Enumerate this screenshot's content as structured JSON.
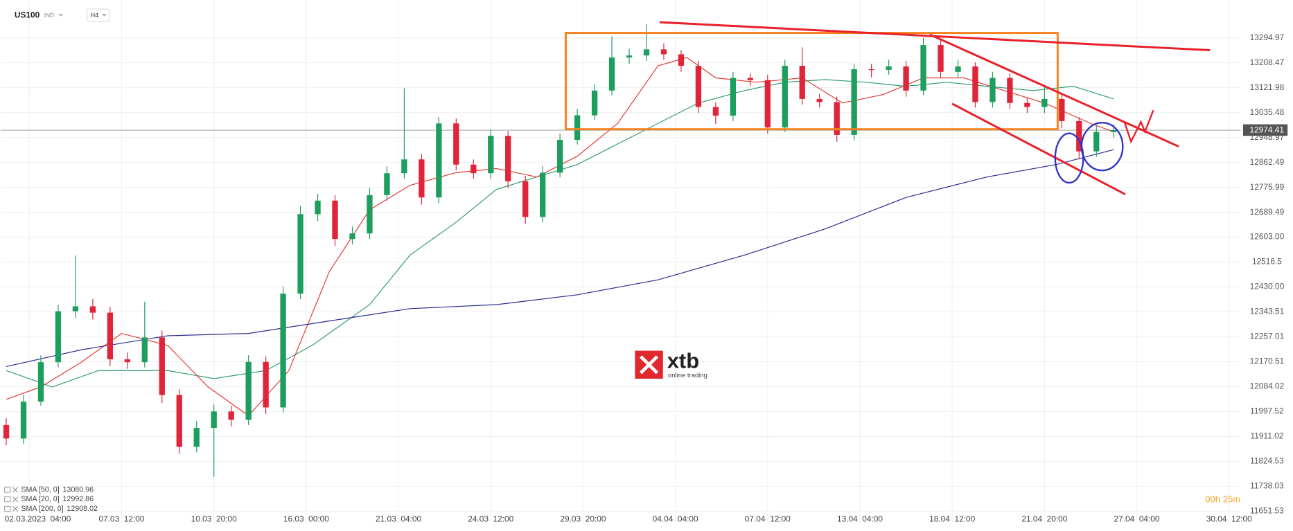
{
  "chart_data": {
    "type": "candlestick",
    "title": "US100",
    "instrument_type": "IND",
    "timeframe": "H4",
    "up_color": "#1e9e5e",
    "down_color": "#e0253a",
    "grid": true,
    "x": [
      1,
      4,
      7,
      10,
      13,
      16,
      19,
      22,
      25,
      28,
      31,
      34,
      37,
      40,
      43,
      46,
      49,
      52,
      55,
      58,
      61,
      64,
      67,
      70,
      73,
      76,
      79,
      82,
      85,
      88,
      91,
      94,
      97,
      100,
      103,
      106,
      109,
      112,
      115,
      118,
      121,
      124,
      127,
      130,
      133,
      136,
      139,
      142,
      145,
      148,
      151,
      154,
      157,
      160,
      163,
      166,
      169,
      172,
      175,
      178,
      181,
      184,
      187,
      190,
      193
    ],
    "ohlc": [
      [
        11951,
        11975,
        11880,
        11904
      ],
      [
        11904,
        12056,
        11885,
        12032
      ],
      [
        12032,
        12193,
        12018,
        12169
      ],
      [
        12169,
        12369,
        12151,
        12346
      ],
      [
        12346,
        12540,
        12322,
        12363
      ],
      [
        12363,
        12388,
        12317,
        12341
      ],
      [
        12341,
        12360,
        12155,
        12179
      ],
      [
        12179,
        12203,
        12146,
        12169
      ],
      [
        12169,
        12379,
        12151,
        12255
      ],
      [
        12255,
        12279,
        12027,
        12055
      ],
      [
        12055,
        12075,
        11851,
        11875
      ],
      [
        11875,
        11965,
        11856,
        11941
      ],
      [
        11941,
        12022,
        11771,
        11998
      ],
      [
        11998,
        12018,
        11946,
        11969
      ],
      [
        11969,
        12193,
        11951,
        12170
      ],
      [
        12170,
        12189,
        11989,
        12012
      ],
      [
        12012,
        12431,
        11994,
        12407
      ],
      [
        12407,
        12711,
        12388,
        12683
      ],
      [
        12683,
        12754,
        12659,
        12730
      ],
      [
        12730,
        12749,
        12573,
        12597
      ],
      [
        12597,
        12640,
        12578,
        12616
      ],
      [
        12616,
        12773,
        12597,
        12749
      ],
      [
        12749,
        12849,
        12730,
        12825
      ],
      [
        12825,
        13120,
        12806,
        12873
      ],
      [
        12873,
        12892,
        12716,
        12741
      ],
      [
        12741,
        13020,
        12721,
        12998
      ],
      [
        12998,
        13015,
        12835,
        12855
      ],
      [
        12855,
        12873,
        12806,
        12825
      ],
      [
        12825,
        12977,
        12806,
        12955
      ],
      [
        12955,
        12972,
        12773,
        12797
      ],
      [
        12797,
        12816,
        12649,
        12673
      ],
      [
        12673,
        12849,
        12654,
        12827
      ],
      [
        12827,
        12963,
        12811,
        12941
      ],
      [
        12941,
        13048,
        12925,
        13026
      ],
      [
        13026,
        13134,
        13010,
        13112
      ],
      [
        13112,
        13300,
        13096,
        13227
      ],
      [
        13227,
        13257,
        13205,
        13234
      ],
      [
        13234,
        13343,
        13215,
        13255
      ],
      [
        13255,
        13276,
        13219,
        13238
      ],
      [
        13238,
        13253,
        13177,
        13198
      ],
      [
        13198,
        13215,
        13034,
        13055
      ],
      [
        13055,
        13072,
        12996,
        13025
      ],
      [
        13025,
        13177,
        13006,
        13156
      ],
      [
        13156,
        13172,
        13129,
        13148
      ],
      [
        13148,
        13167,
        12963,
        12984
      ],
      [
        12984,
        13219,
        12968,
        13198
      ],
      [
        13198,
        13262,
        13063,
        13083
      ],
      [
        13083,
        13101,
        13053,
        13072
      ],
      [
        13072,
        13091,
        12934,
        12958
      ],
      [
        12958,
        13205,
        12939,
        13186
      ],
      [
        13186,
        13205,
        13158,
        13184
      ],
      [
        13184,
        13219,
        13167,
        13196
      ],
      [
        13196,
        13215,
        13091,
        13112
      ],
      [
        13112,
        13295,
        13096,
        13270
      ],
      [
        13270,
        13286,
        13158,
        13177
      ],
      [
        13177,
        13219,
        13158,
        13196
      ],
      [
        13196,
        13210,
        13053,
        13072
      ],
      [
        13072,
        13177,
        13053,
        13156
      ],
      [
        13156,
        13172,
        13048,
        13069
      ],
      [
        13069,
        13086,
        13034,
        13055
      ],
      [
        13055,
        13129,
        13034,
        13083
      ],
      [
        13083,
        13101,
        12982,
        13006
      ],
      [
        13006,
        13020,
        12873,
        12901
      ],
      [
        12901,
        12991,
        12882,
        12968
      ],
      [
        12968,
        12996,
        12949,
        12975
      ]
    ],
    "series": [
      {
        "name": "SMA [50, 0]",
        "legend_value": 13080.96,
        "color": "#2e9e6a",
        "x": [
          1,
          9,
          17,
          29,
          37,
          46,
          54,
          64,
          71,
          79,
          86,
          93,
          100,
          107,
          114,
          121,
          129,
          136,
          143,
          150,
          157,
          164,
          171,
          179,
          186,
          193
        ],
        "values": [
          12140,
          12083,
          12140,
          12140,
          12112,
          12140,
          12227,
          12369,
          12541,
          12655,
          12769,
          12812,
          12855,
          12927,
          12998,
          13069,
          13112,
          13141,
          13150,
          13141,
          13127,
          13141,
          13127,
          13112,
          13127,
          13083
        ]
      },
      {
        "name": "SMA [20, 0]",
        "legend_value": 12992.86,
        "color": "#e53935",
        "x": [
          1,
          7,
          14,
          21,
          29,
          36,
          43,
          50,
          57,
          64,
          71,
          79,
          86,
          93,
          100,
          107,
          114,
          119,
          124,
          131,
          139,
          146,
          153,
          160,
          167,
          174,
          181,
          189,
          193
        ],
        "values": [
          12040,
          12083,
          12169,
          12269,
          12227,
          12083,
          11983,
          12140,
          12483,
          12698,
          12783,
          12827,
          12841,
          12812,
          12884,
          12998,
          13198,
          13227,
          13156,
          13141,
          13156,
          13069,
          13098,
          13156,
          13156,
          13112,
          13069,
          12998,
          12969
        ]
      },
      {
        "name": "SMA [200, 0]",
        "legend_value": 12908.02,
        "color": "#2b2b8f",
        "x": [
          1,
          14,
          29,
          43,
          57,
          71,
          86,
          100,
          114,
          129,
          143,
          157,
          171,
          183,
          193
        ],
        "values": [
          12154,
          12212,
          12261,
          12269,
          12312,
          12355,
          12369,
          12403,
          12455,
          12541,
          12632,
          12741,
          12812,
          12855,
          12907
        ]
      }
    ],
    "current_price": 12974.41,
    "countdown": "00h 25m",
    "brand": "xtb",
    "brand_tagline": "online trading",
    "xlim": [
      0,
      215
    ],
    "xticks": [
      {
        "value": 5,
        "label": "02.03.2023  04:00"
      },
      {
        "value": 21,
        "label": "07.03  12:00"
      },
      {
        "value": 37,
        "label": "10.03  20:00"
      },
      {
        "value": 53,
        "label": "16.03  00:00"
      },
      {
        "value": 69,
        "label": "21.03  04:00"
      },
      {
        "value": 85,
        "label": "24.03  12:00"
      },
      {
        "value": 101,
        "label": "29.03  20:00"
      },
      {
        "value": 117,
        "label": "04.04  04:00"
      },
      {
        "value": 133,
        "label": "07.04  12:00"
      },
      {
        "value": 149,
        "label": "13.04  04:00"
      },
      {
        "value": 165,
        "label": "18.04  12:00"
      },
      {
        "value": 181,
        "label": "21.04  20:00"
      },
      {
        "value": 197,
        "label": "27.04  04:00"
      },
      {
        "value": 213,
        "label": "30.04  12:00"
      }
    ],
    "ylim": [
      11611.5,
      13426.5
    ],
    "yticks": [
      13294.97,
      13208.47,
      13121.98,
      13035.48,
      12948.97,
      12862.49,
      12775.99,
      12689.49,
      {
        "value": 12603,
        "label": "12603.00"
      },
      12516.5,
      {
        "value": 12430,
        "label": "12430.00"
      },
      12343.51,
      12257.01,
      12170.51,
      12084.02,
      11997.52,
      11911.02,
      11824.53,
      11738.03,
      11651.53
    ]
  }
}
